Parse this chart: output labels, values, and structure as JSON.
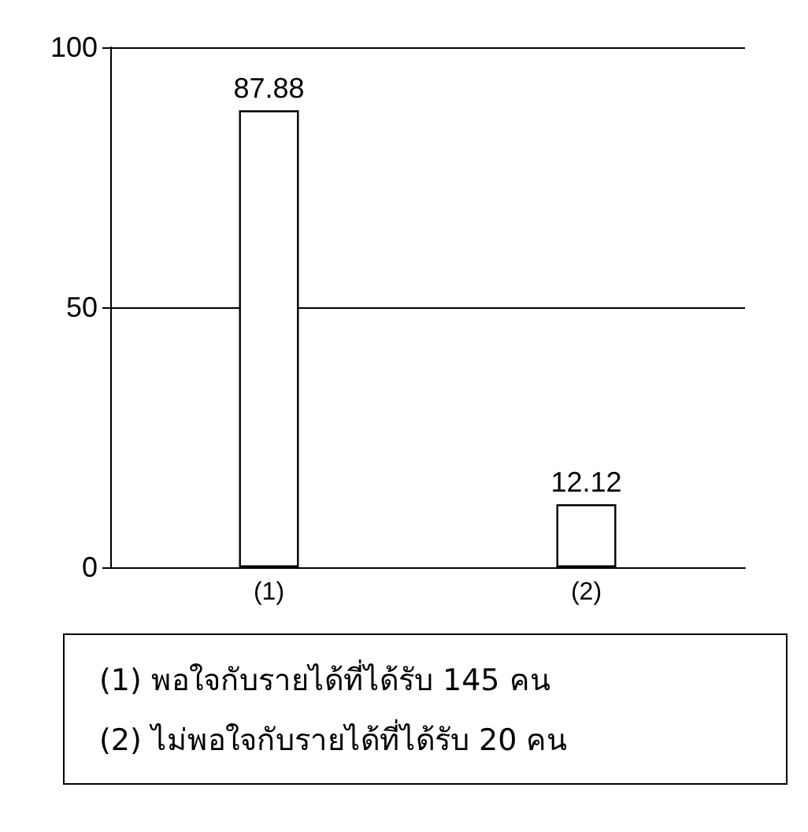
{
  "chart_data": {
    "type": "bar",
    "categories": [
      "(1)",
      "(2)"
    ],
    "values": [
      87.88,
      12.12
    ],
    "color": "#ffffff",
    "ylim": [
      0,
      100
    ],
    "yticks": [
      0,
      50,
      100
    ],
    "grid": "y",
    "data_labels": true,
    "annotations": [
      "(1)  พอใจกับรายได้ที่ได้รับ  145 คน",
      "(2)  ไม่พอใจกับรายได้ที่ได้รับ  20 คน"
    ]
  }
}
